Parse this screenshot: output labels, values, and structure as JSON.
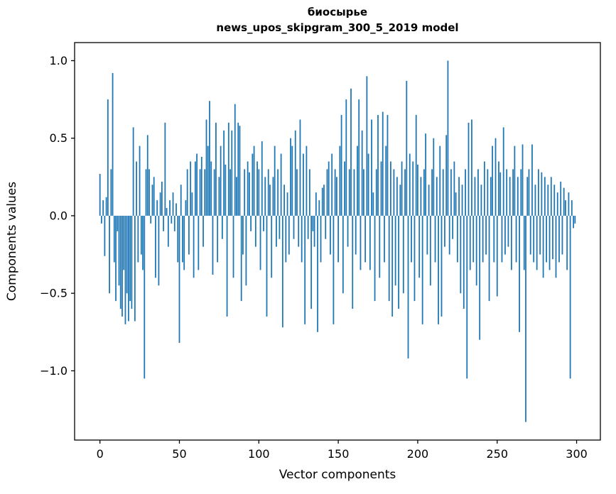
{
  "figure": {
    "title_line1": "биосырье",
    "title_line2": "news_upos_skipgram_300_5_2019 model",
    "xlabel": "Vector components",
    "ylabel": "Components values"
  },
  "chart_data": {
    "type": "bar",
    "title": "биосырье — news_upos_skipgram_300_5_2019 model",
    "xlabel": "Vector components",
    "ylabel": "Components values",
    "legend": "none",
    "grid": false,
    "bar_color": "#1f77b4",
    "x_ticks": [
      0,
      50,
      100,
      150,
      200,
      250,
      300
    ],
    "x_tick_labels": [
      "0",
      "50",
      "100",
      "150",
      "200",
      "250",
      "300"
    ],
    "y_ticks": [
      -1.0,
      -0.5,
      0.0,
      0.5,
      1.0
    ],
    "y_tick_labels": [
      "−1.0",
      "−0.5",
      "0.0",
      "0.5",
      "1.0"
    ],
    "xlim": [
      -15.95,
      314.95
    ],
    "ylim": [
      -1.4465,
      1.1165
    ],
    "values": [
      0.27,
      -0.05,
      0.1,
      -0.26,
      0.12,
      0.75,
      -0.5,
      0.3,
      0.92,
      -0.3,
      -0.55,
      -0.1,
      -0.45,
      -0.6,
      -0.65,
      -0.35,
      -0.7,
      -0.5,
      -0.68,
      -0.55,
      -0.6,
      0.57,
      -0.68,
      0.35,
      -0.3,
      0.45,
      -0.25,
      -0.35,
      -1.05,
      0.3,
      0.52,
      0.3,
      -0.05,
      0.2,
      0.25,
      -0.4,
      0.1,
      -0.45,
      0.15,
      0.22,
      -0.1,
      0.6,
      0.05,
      -0.2,
      0.1,
      -0.05,
      0.15,
      -0.1,
      0.08,
      -0.3,
      -0.82,
      0.2,
      -0.3,
      -0.35,
      0.1,
      0.3,
      -0.25,
      0.35,
      0.15,
      -0.4,
      0.35,
      0.4,
      -0.35,
      0.3,
      0.38,
      -0.2,
      0.3,
      0.62,
      0.45,
      0.74,
      0.35,
      -0.38,
      0.3,
      0.6,
      -0.3,
      0.25,
      0.45,
      -0.15,
      0.55,
      0.33,
      -0.65,
      0.6,
      0.3,
      0.55,
      -0.4,
      0.72,
      0.25,
      0.6,
      0.58,
      -0.55,
      -0.25,
      0.3,
      -0.45,
      0.35,
      0.28,
      -0.1,
      0.4,
      0.45,
      -0.2,
      0.35,
      0.3,
      -0.35,
      0.48,
      -0.1,
      0.25,
      -0.65,
      0.3,
      0.2,
      -0.4,
      0.25,
      0.45,
      -0.2,
      0.3,
      -0.15,
      0.4,
      -0.72,
      0.2,
      -0.3,
      0.15,
      -0.25,
      0.5,
      0.45,
      -0.15,
      0.55,
      0.3,
      -0.2,
      0.62,
      -0.3,
      0.4,
      -0.7,
      0.45,
      -0.15,
      0.3,
      -0.6,
      -0.1,
      -0.2,
      0.15,
      -0.75,
      0.1,
      -0.3,
      0.18,
      0.2,
      -0.15,
      0.3,
      0.35,
      -0.25,
      0.4,
      -0.7,
      0.3,
      0.25,
      -0.3,
      0.45,
      0.65,
      -0.5,
      0.35,
      0.75,
      -0.2,
      0.3,
      0.82,
      -0.6,
      0.3,
      -0.25,
      0.45,
      0.75,
      -0.35,
      0.55,
      0.3,
      -0.3,
      0.9,
      0.4,
      -0.35,
      0.62,
      0.15,
      -0.55,
      0.3,
      0.65,
      -0.4,
      0.35,
      0.67,
      -0.3,
      0.45,
      0.65,
      -0.55,
      0.35,
      -0.65,
      0.3,
      -0.45,
      0.25,
      -0.6,
      0.2,
      0.35,
      -0.5,
      0.3,
      0.87,
      -0.92,
      0.4,
      -0.3,
      0.35,
      -0.55,
      0.65,
      0.33,
      -0.4,
      0.25,
      -0.7,
      0.3,
      0.53,
      -0.25,
      0.2,
      -0.45,
      0.3,
      0.5,
      -0.3,
      0.25,
      -0.7,
      0.45,
      -0.65,
      0.3,
      -0.2,
      0.52,
      1.0,
      -0.25,
      0.3,
      -0.15,
      0.35,
      0.15,
      -0.3,
      0.25,
      -0.5,
      0.2,
      -0.6,
      0.3,
      -1.05,
      0.6,
      -0.35,
      0.62,
      -0.3,
      0.25,
      -0.45,
      0.3,
      -0.8,
      0.2,
      -0.3,
      0.35,
      -0.25,
      0.3,
      -0.55,
      0.25,
      0.45,
      -0.3,
      0.5,
      -0.52,
      0.35,
      0.28,
      -0.3,
      0.57,
      -0.25,
      0.3,
      -0.2,
      0.25,
      -0.35,
      0.3,
      0.45,
      -0.3,
      0.25,
      -0.75,
      0.3,
      0.46,
      -0.35,
      -1.33,
      0.25,
      0.3,
      -0.25,
      0.46,
      -0.3,
      0.2,
      -0.35,
      0.3,
      -0.25,
      0.28,
      -0.4,
      0.25,
      -0.3,
      0.2,
      -0.35,
      0.25,
      -0.28,
      0.2,
      -0.4,
      0.15,
      -0.3,
      0.22,
      -0.25,
      0.18,
      0.1,
      -0.35,
      0.15,
      -1.05,
      0.1,
      -0.08,
      -0.05
    ]
  }
}
